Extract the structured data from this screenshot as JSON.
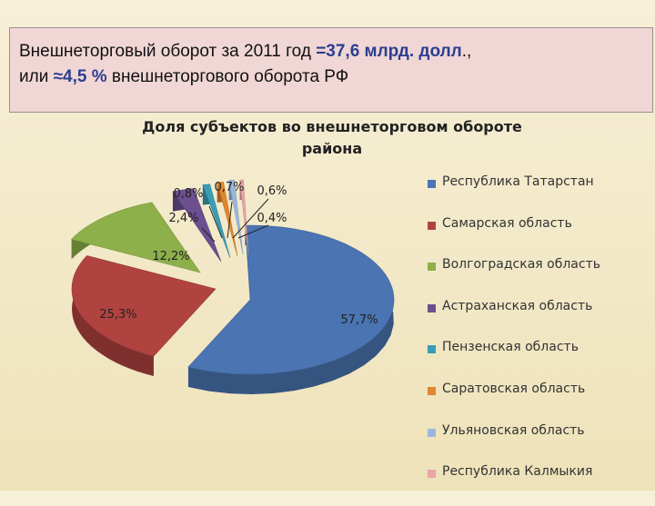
{
  "header": {
    "line1_pre": "Внешнеторговый оборот  за 2011 год ",
    "line1_hl": "=37,6 млрд. долл",
    "line1_post": "., ",
    "line2_pre": "или ",
    "line2_hl": "≈4,5 %",
    "line2_post": " внешнеторгового оборота РФ"
  },
  "chart_data": {
    "type": "pie",
    "title": "Доля субъектов во внешнеторговом обороте района",
    "title_line1": "Доля субъектов во внешнеторговом обороте",
    "title_line2": "района",
    "legend_position": "right",
    "series": [
      {
        "name": "Республика Татарстан",
        "value": 57.7,
        "label": "57,7%",
        "color": "#4a74b2"
      },
      {
        "name": "Самарская область",
        "value": 25.3,
        "label": "25,3%",
        "color": "#b04340"
      },
      {
        "name": "Волгоградская область",
        "value": 12.2,
        "label": "12,2%",
        "color": "#8db04a"
      },
      {
        "name": "Астраханская область",
        "value": 2.4,
        "label": "2,4%",
        "color": "#6b4f8f"
      },
      {
        "name": "Пензенская область",
        "value": 0.8,
        "label": "0,8%",
        "color": "#3a9db5"
      },
      {
        "name": "Саратовская область",
        "value": 0.7,
        "label": "0,7%",
        "color": "#e0872f"
      },
      {
        "name": "Ульяновская область",
        "value": 0.6,
        "label": "0,6%",
        "color": "#9bb7dc"
      },
      {
        "name": "Республика Калмыкия",
        "value": 0.4,
        "label": "0,4%",
        "color": "#e8a6a6"
      }
    ]
  }
}
